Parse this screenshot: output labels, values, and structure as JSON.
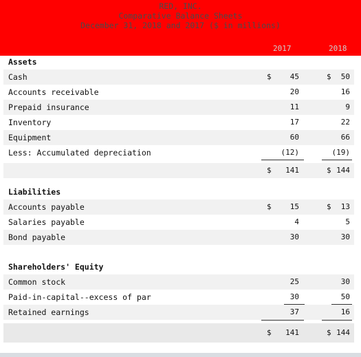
{
  "header": {
    "company": "RED, INC.",
    "statement": "Comparative Balance Sheets",
    "period": "December 31, 2018 and 2017 ($ in millions)",
    "col_2017": "2017",
    "col_2018": "2018"
  },
  "assets": {
    "heading": "Assets",
    "rows": [
      {
        "label": "Cash",
        "sym17": "$",
        "v17": "45",
        "sym18": "$",
        "v18": "50"
      },
      {
        "label": "Accounts receivable",
        "v17": "20",
        "v18": "16"
      },
      {
        "label": "Prepaid insurance",
        "v17": "11",
        "v18": "9"
      },
      {
        "label": "Inventory",
        "v17": "17",
        "v18": "22"
      },
      {
        "label": "Equipment",
        "v17": "60",
        "v18": "66"
      },
      {
        "label": "Less: Accumulated depreciation",
        "v17": "(12)",
        "v18": "(19)"
      }
    ],
    "total": {
      "sym17": "$",
      "v17": "141",
      "sym18": "$",
      "v18": "144"
    }
  },
  "liabilities": {
    "heading": "Liabilities",
    "rows": [
      {
        "label": "Accounts payable",
        "sym17": "$",
        "v17": "15",
        "sym18": "$",
        "v18": "13"
      },
      {
        "label": "Salaries payable",
        "v17": "4",
        "v18": "5"
      },
      {
        "label": "Bond payable",
        "v17": "30",
        "v18": "30"
      }
    ]
  },
  "equity": {
    "heading": "Shareholders' Equity",
    "rows": [
      {
        "label": "Common stock",
        "v17": "25",
        "v18": "30"
      },
      {
        "label": "Paid-in-capital--excess of par",
        "v17": "30",
        "v18": "50"
      },
      {
        "label": "Retained earnings",
        "v17": "37",
        "v18": "16"
      }
    ],
    "total": {
      "sym17": "$",
      "v17": "141",
      "sym18": "$",
      "v18": "144"
    }
  }
}
